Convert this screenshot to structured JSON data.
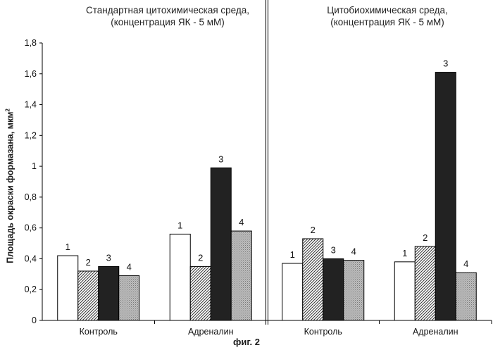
{
  "figure": {
    "caption": "фиг. 2",
    "ylabel_main": "Площадь окраски формазана, мкм",
    "ylabel_sup": "2"
  },
  "panels": [
    {
      "title_line1": "Стандартная цитохимическая среда,",
      "title_line2": "(концентрация ЯК - 5 мМ)"
    },
    {
      "title_line1": "Цитобиохимическая среда,",
      "title_line2": "(концентрация ЯК - 5 мМ)"
    }
  ],
  "chart_data": {
    "type": "bar",
    "ylim": [
      0,
      1.8
    ],
    "yticks": [
      "0",
      "0,2",
      "0,4",
      "0,6",
      "0,8",
      "1",
      "1,2",
      "1,4",
      "1,6",
      "1,8"
    ],
    "ytick_values": [
      0,
      0.2,
      0.4,
      0.6,
      0.8,
      1.0,
      1.2,
      1.4,
      1.6,
      1.8
    ],
    "categories": [
      "Контроль",
      "Адреналин",
      "Контроль",
      "Адреналин"
    ],
    "bar_labels": [
      "1",
      "2",
      "3",
      "4"
    ],
    "grid": false,
    "legend": "none",
    "groups": [
      {
        "values": [
          0.42,
          0.32,
          0.35,
          0.29
        ]
      },
      {
        "values": [
          0.56,
          0.35,
          0.99,
          0.58
        ]
      },
      {
        "values": [
          0.37,
          0.53,
          0.4,
          0.39
        ]
      },
      {
        "values": [
          0.38,
          0.48,
          1.61,
          0.31
        ]
      }
    ],
    "bar_fills": [
      "white",
      "diagonal-hatch",
      "black",
      "gray-dotted"
    ]
  }
}
